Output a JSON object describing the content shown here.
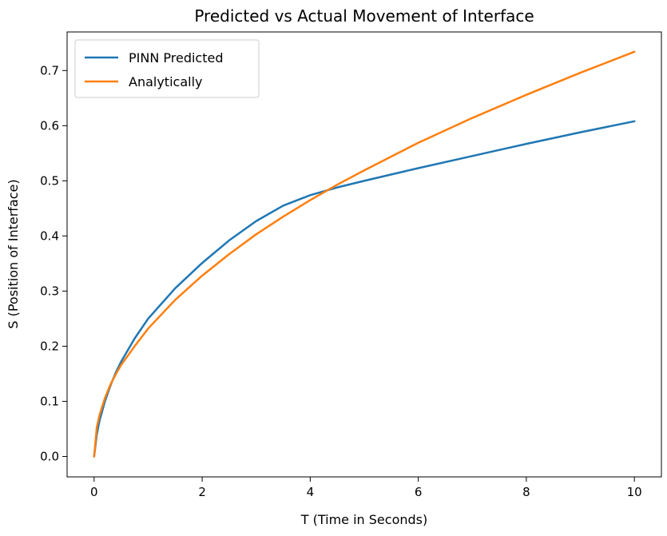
{
  "chart_data": {
    "type": "line",
    "title": "Predicted vs Actual Movement of Interface",
    "xlabel": "T (Time in Seconds)",
    "ylabel": "S (Position of Interface)",
    "xlim": [
      -0.5,
      10.5
    ],
    "ylim": [
      -0.037,
      0.77
    ],
    "xticks": [
      0,
      2,
      4,
      6,
      8,
      10
    ],
    "yticks": [
      0.0,
      0.1,
      0.2,
      0.3,
      0.4,
      0.5,
      0.6,
      0.7
    ],
    "xtick_labels": [
      "0",
      "2",
      "4",
      "6",
      "8",
      "10"
    ],
    "ytick_labels": [
      "0.0",
      "0.1",
      "0.2",
      "0.3",
      "0.4",
      "0.5",
      "0.6",
      "0.7"
    ],
    "grid": false,
    "legend_position": "upper-left",
    "series": [
      {
        "name": "PINN Predicted",
        "color": "#1f77b4",
        "x": [
          0,
          0.05,
          0.1,
          0.2,
          0.3,
          0.4,
          0.5,
          0.75,
          1.0,
          1.5,
          2.0,
          2.5,
          3.0,
          3.5,
          4.0,
          4.5,
          5.0,
          6.0,
          7.0,
          8.0,
          9.0,
          10.0
        ],
        "y": [
          0.0,
          0.04,
          0.065,
          0.1,
          0.128,
          0.152,
          0.172,
          0.214,
          0.25,
          0.305,
          0.351,
          0.392,
          0.427,
          0.455,
          0.474,
          0.488,
          0.5,
          0.523,
          0.545,
          0.567,
          0.588,
          0.608
        ]
      },
      {
        "name": "Analytically",
        "color": "#ff7f0e",
        "x": [
          0,
          0.05,
          0.1,
          0.2,
          0.3,
          0.4,
          0.5,
          0.75,
          1.0,
          1.5,
          2.0,
          2.5,
          3.0,
          3.5,
          4.0,
          4.5,
          5.0,
          6.0,
          7.0,
          8.0,
          9.0,
          10.0
        ],
        "y": [
          0.0,
          0.053,
          0.075,
          0.106,
          0.13,
          0.149,
          0.166,
          0.2,
          0.232,
          0.284,
          0.328,
          0.367,
          0.403,
          0.435,
          0.465,
          0.493,
          0.519,
          0.569,
          0.614,
          0.656,
          0.696,
          0.734
        ]
      }
    ]
  }
}
